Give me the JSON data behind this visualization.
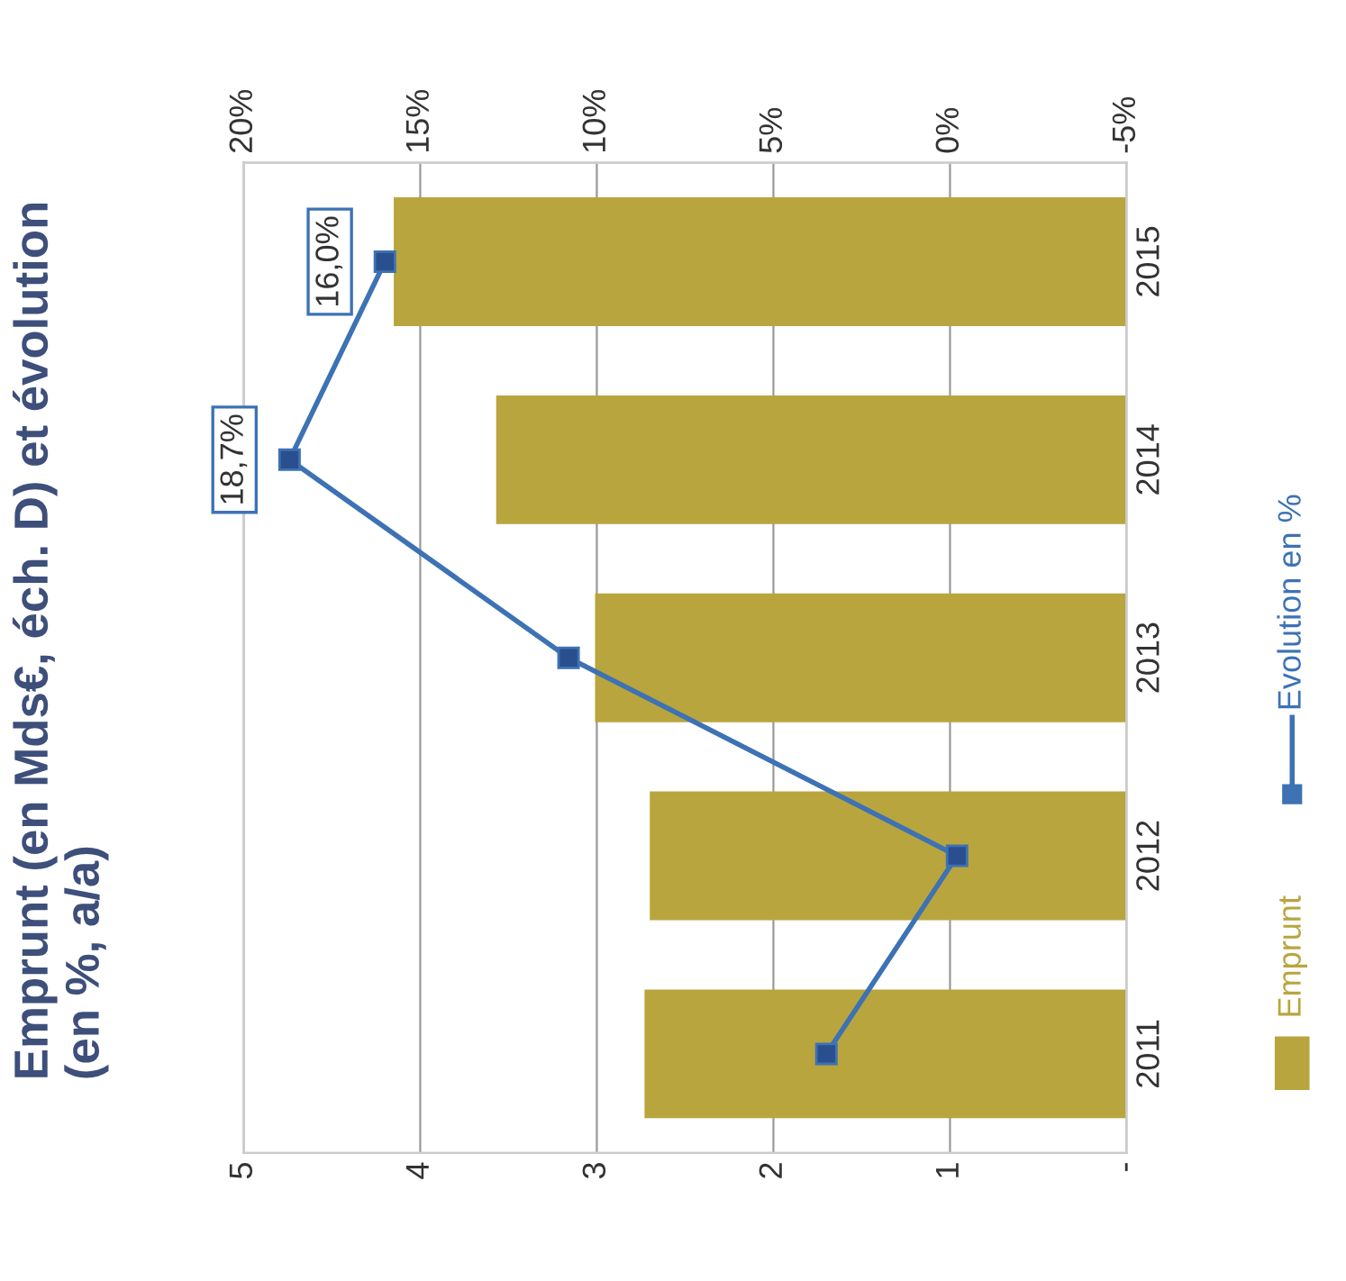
{
  "chart_data": {
    "type": "bar",
    "orientation": "horizontal",
    "title": "Emprunt (en Mds€, éch. D) et évolution\n(en %, a/a)",
    "categories": [
      "2015",
      "2014",
      "2013",
      "2012",
      "2011"
    ],
    "series": [
      {
        "name": "Emprunt",
        "color": "#b9a53e",
        "values": [
          4.15,
          3.57,
          3.01,
          2.7,
          2.73
        ]
      },
      {
        "name": "Evolution en %",
        "type": "line",
        "axis": "x2",
        "color": "#3d72b4",
        "marker": "square",
        "values": [
          16.0,
          18.7,
          10.8,
          -0.2,
          3.5
        ],
        "value_labels": [
          "16,0%",
          "18,7%",
          null,
          null,
          null
        ]
      }
    ],
    "xlim": [
      5,
      0
    ],
    "xticks": [
      5,
      4,
      3,
      2,
      1,
      {
        "value": 0,
        "label": "-"
      }
    ],
    "x2lim": [
      20,
      -5
    ],
    "x2ticks": [
      {
        "value": 20,
        "label": "20%"
      },
      {
        "value": 15,
        "label": "15%"
      },
      {
        "value": 10,
        "label": "10%"
      },
      {
        "value": 5,
        "label": "5%"
      },
      {
        "value": 0,
        "label": "0%"
      },
      {
        "value": -5,
        "label": "-5%"
      }
    ],
    "grid": "x",
    "legend": "right"
  }
}
